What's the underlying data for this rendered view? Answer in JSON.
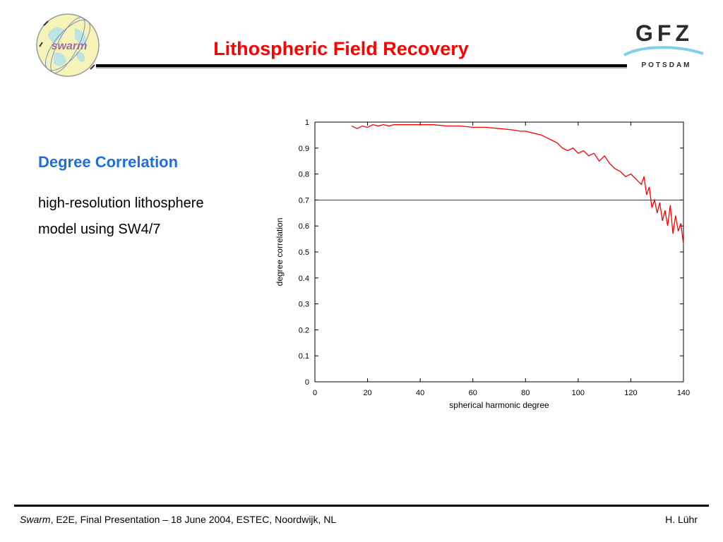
{
  "header": {
    "title": "Lithospheric Field Recovery",
    "logo_left": {
      "text": "swarm",
      "icon": "swarm-globe-logo"
    },
    "logo_right": {
      "text": "GFZ",
      "subtext": "Potsdam",
      "icon": "gfz-logo"
    }
  },
  "content": {
    "subtitle": "Degree Correlation",
    "description_lines": [
      "high-resolution lithosphere",
      "model using SW4/7"
    ]
  },
  "footer": {
    "italic": "Swarm",
    "text": ", E2E, Final Presentation – 18 June 2004, ESTEC, Noordwijk, NL",
    "author": "H. Lühr"
  },
  "colors": {
    "title": "#ff0000",
    "subtitle": "#1f6fd8",
    "series": "#ff0000",
    "reference_line": "#000000"
  },
  "chart_data": {
    "type": "line",
    "xlabel": "spherical harmonic degree",
    "ylabel": "degree correlation",
    "xlim": [
      0,
      140
    ],
    "ylim": [
      0,
      1
    ],
    "xticks": [
      "0",
      "20",
      "40",
      "60",
      "80",
      "100",
      "120",
      "140"
    ],
    "yticks": [
      "0",
      "0.1",
      "0.2",
      "0.3",
      "0.4",
      "0.5",
      "0.6",
      "0.7",
      "0.8",
      "0.9",
      "1"
    ],
    "grid": false,
    "reference_line": {
      "y": 0.7
    },
    "series": [
      {
        "x": [
          14,
          16,
          18,
          20,
          22,
          24,
          26,
          28,
          30,
          35,
          40,
          45,
          50,
          55,
          60,
          65,
          70,
          75,
          78,
          80,
          82,
          84,
          86,
          88,
          90,
          92,
          94,
          96,
          98,
          100,
          102,
          104,
          106,
          108,
          110,
          112,
          114,
          116,
          118,
          120,
          122,
          124,
          125,
          126,
          127,
          128,
          129,
          130,
          131,
          132,
          133,
          134,
          135,
          136,
          137,
          138,
          139,
          140
        ],
        "values": [
          0.985,
          0.975,
          0.985,
          0.98,
          0.99,
          0.985,
          0.99,
          0.985,
          0.99,
          0.99,
          0.99,
          0.99,
          0.985,
          0.985,
          0.98,
          0.98,
          0.975,
          0.97,
          0.965,
          0.965,
          0.96,
          0.955,
          0.95,
          0.94,
          0.93,
          0.92,
          0.9,
          0.89,
          0.9,
          0.88,
          0.89,
          0.87,
          0.88,
          0.85,
          0.87,
          0.84,
          0.82,
          0.81,
          0.79,
          0.8,
          0.78,
          0.76,
          0.79,
          0.72,
          0.75,
          0.67,
          0.7,
          0.65,
          0.69,
          0.62,
          0.66,
          0.6,
          0.68,
          0.57,
          0.64,
          0.58,
          0.61,
          0.53
        ]
      }
    ]
  }
}
